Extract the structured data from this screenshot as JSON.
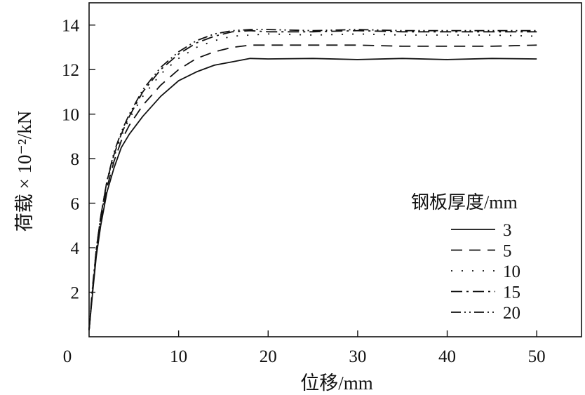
{
  "chart_data": {
    "type": "line",
    "title": "",
    "xlabel": "位移/mm",
    "ylabel": "荷载 × 10⁻²/kN",
    "xlim": [
      0,
      55
    ],
    "ylim": [
      0,
      15
    ],
    "xticks": [
      0,
      10,
      20,
      30,
      40,
      50
    ],
    "yticks": [
      2,
      4,
      6,
      8,
      10,
      12,
      14
    ],
    "grid": false,
    "legend": {
      "title": "钢板厚度/mm",
      "placement": "right"
    },
    "series": [
      {
        "name": "3",
        "style": "solid",
        "x": [
          0,
          0.4,
          0.8,
          1.3,
          2,
          2.8,
          3.6,
          4.5,
          6,
          8,
          10,
          12,
          14,
          16,
          18,
          20,
          25,
          30,
          35,
          40,
          45,
          50
        ],
        "y": [
          0.3,
          2,
          3.6,
          5,
          6.5,
          7.6,
          8.5,
          9.1,
          9.9,
          10.8,
          11.5,
          11.9,
          12.2,
          12.35,
          12.5,
          12.48,
          12.5,
          12.45,
          12.5,
          12.45,
          12.5,
          12.48
        ]
      },
      {
        "name": "5",
        "style": "dashed",
        "x": [
          0,
          0.4,
          0.8,
          1.3,
          2,
          2.8,
          3.6,
          4.5,
          6,
          8,
          10,
          12,
          14,
          16,
          18,
          20,
          25,
          30,
          35,
          40,
          45,
          50
        ],
        "y": [
          0.3,
          2.1,
          3.7,
          5.1,
          6.7,
          7.9,
          8.8,
          9.5,
          10.4,
          11.3,
          12.0,
          12.5,
          12.8,
          13.0,
          13.1,
          13.1,
          13.1,
          13.1,
          13.05,
          13.05,
          13.05,
          13.1
        ]
      },
      {
        "name": "10",
        "style": "dotted",
        "x": [
          0,
          0.4,
          0.8,
          1.3,
          2,
          2.8,
          3.6,
          4.5,
          6,
          8,
          10,
          12,
          14,
          16,
          18,
          20,
          25,
          30,
          35,
          40,
          45,
          50
        ],
        "y": [
          0.3,
          2.2,
          3.8,
          5.3,
          6.9,
          8.1,
          9.0,
          9.8,
          10.8,
          11.8,
          12.5,
          13.0,
          13.3,
          13.5,
          13.55,
          13.6,
          13.55,
          13.6,
          13.55,
          13.55,
          13.55,
          13.5
        ]
      },
      {
        "name": "15",
        "style": "dash-dot",
        "x": [
          0,
          0.4,
          0.8,
          1.3,
          2,
          2.8,
          3.6,
          4.5,
          6,
          8,
          10,
          12,
          14,
          16,
          18,
          20,
          25,
          30,
          35,
          40,
          45,
          50
        ],
        "y": [
          0.3,
          2.2,
          3.9,
          5.4,
          7.0,
          8.2,
          9.1,
          9.9,
          11.0,
          12.0,
          12.7,
          13.2,
          13.5,
          13.7,
          13.75,
          13.7,
          13.7,
          13.75,
          13.7,
          13.7,
          13.7,
          13.7
        ]
      },
      {
        "name": "20",
        "style": "dash-dot-dot",
        "x": [
          0,
          0.4,
          0.8,
          1.3,
          2,
          2.8,
          3.6,
          4.5,
          6,
          8,
          10,
          12,
          14,
          16,
          18,
          20,
          25,
          30,
          35,
          40,
          45,
          50
        ],
        "y": [
          0.3,
          2.3,
          3.9,
          5.4,
          7.0,
          8.3,
          9.2,
          10.0,
          11.1,
          12.1,
          12.8,
          13.3,
          13.6,
          13.75,
          13.8,
          13.8,
          13.75,
          13.8,
          13.75,
          13.75,
          13.75,
          13.75
        ]
      }
    ]
  }
}
